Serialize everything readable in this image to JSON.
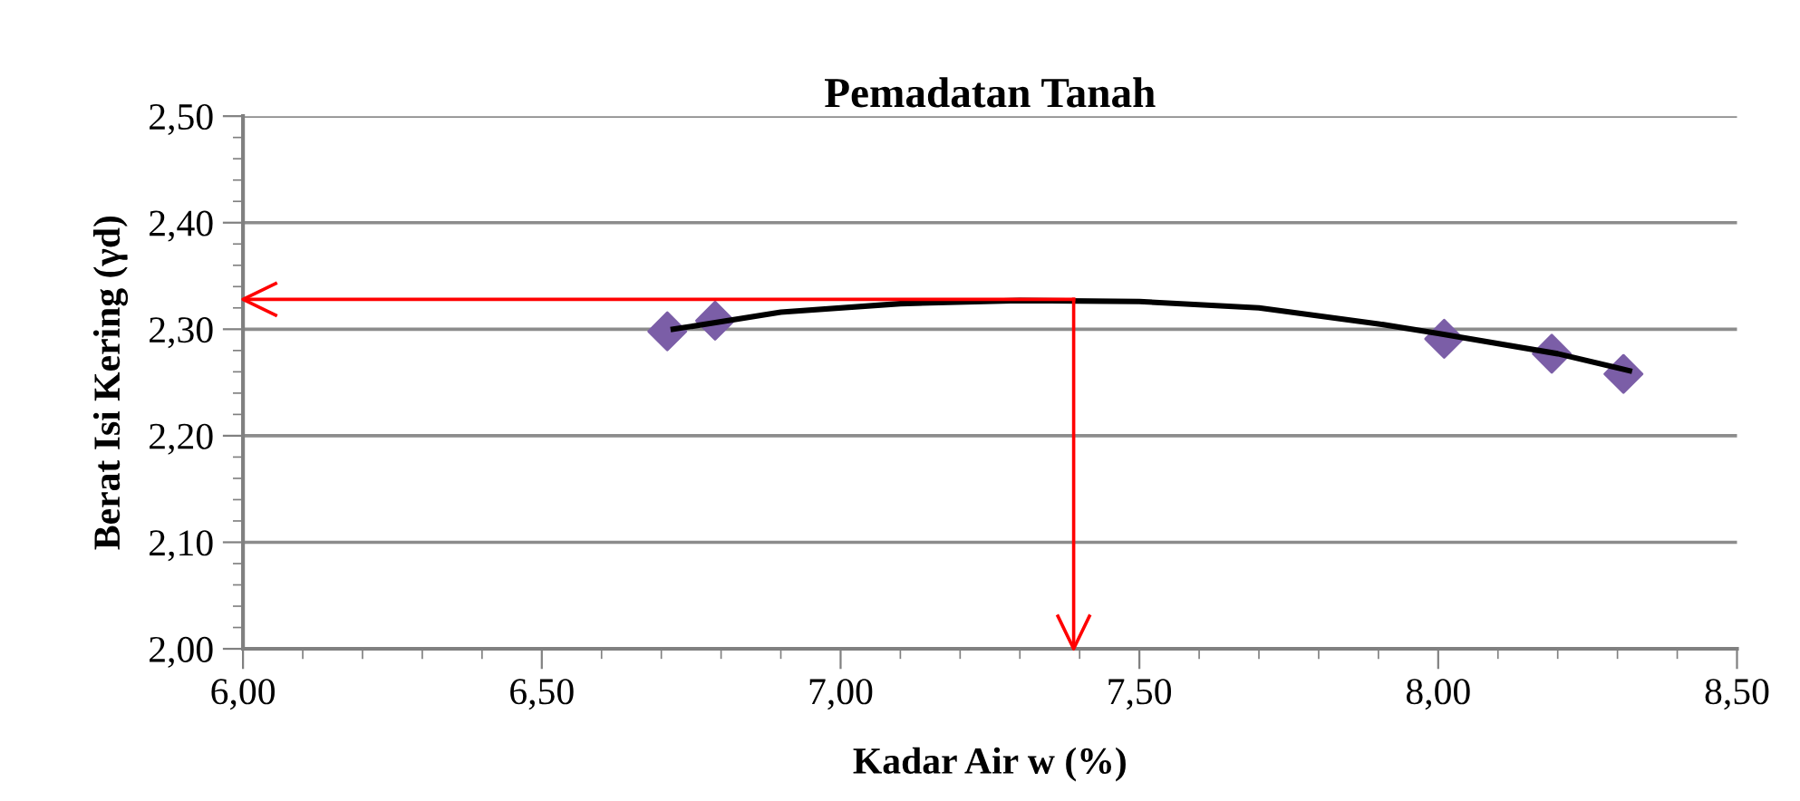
{
  "chart_data": {
    "type": "scatter",
    "title": "Pemadatan Tanah",
    "xlabel": "Kadar Air w (%)",
    "ylabel": "Berat Isi Kering (γd)",
    "xlim": [
      6.0,
      8.5
    ],
    "xticks": [
      {
        "value": 6.0,
        "label": "6,00"
      },
      {
        "value": 6.5,
        "label": "6,50"
      },
      {
        "value": 7.0,
        "label": "7,00"
      },
      {
        "value": 7.5,
        "label": "7,50"
      },
      {
        "value": 8.0,
        "label": "8,00"
      },
      {
        "value": 8.5,
        "label": "8,50"
      }
    ],
    "ylim": [
      2.0,
      2.5
    ],
    "yticks": [
      {
        "value": 2.0,
        "label": "2,00"
      },
      {
        "value": 2.1,
        "label": "2,10"
      },
      {
        "value": 2.2,
        "label": "2,20"
      },
      {
        "value": 2.3,
        "label": "2,30"
      },
      {
        "value": 2.4,
        "label": "2,40"
      },
      {
        "value": 2.5,
        "label": "2,50"
      }
    ],
    "grid": "y",
    "series": [
      {
        "type": "line",
        "color": "#000000",
        "x": [
          6.72,
          6.9,
          7.1,
          7.3,
          7.5,
          7.7,
          7.9,
          8.0,
          8.2,
          8.32
        ],
        "values": [
          2.3,
          2.316,
          2.324,
          2.327,
          2.326,
          2.32,
          2.305,
          2.296,
          2.277,
          2.261
        ],
        "marker": "none"
      },
      {
        "color": "#7b5ea7",
        "x": [
          6.71,
          6.79,
          8.01,
          8.19,
          8.31
        ],
        "values": [
          2.298,
          2.308,
          2.291,
          2.277,
          2.258
        ],
        "marker": "diamond"
      },
      {
        "type": "line",
        "color": "#ff0000",
        "x": [
          7.39,
          6.0
        ],
        "values": [
          2.328,
          2.328
        ]
      },
      {
        "type": "line",
        "color": "#ff0000",
        "x": [
          7.39,
          7.39
        ],
        "values": [
          2.328,
          2.0
        ]
      }
    ]
  }
}
